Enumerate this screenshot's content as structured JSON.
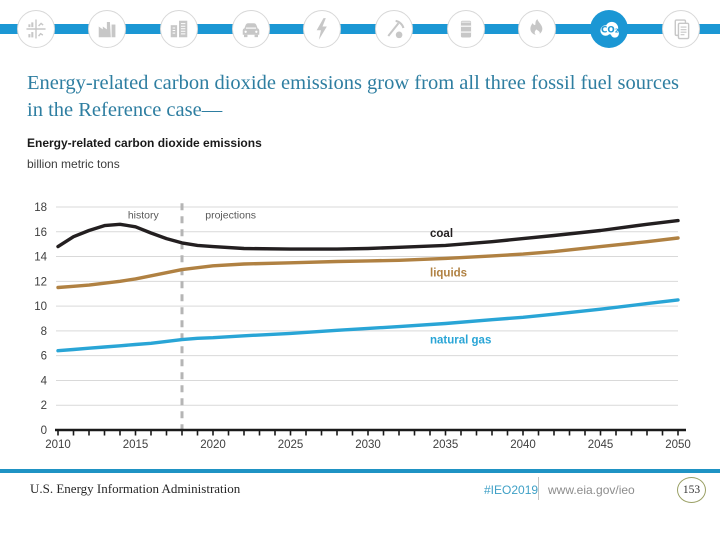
{
  "slide": {
    "title": "Energy-related carbon dioxide emissions grow from all three fossil fuel sources in the Reference case—",
    "title_color": "#2e7ea1",
    "accent_color": "#1b97d4"
  },
  "icon_bar": {
    "items": [
      {
        "id": "overview-charts"
      },
      {
        "id": "industry"
      },
      {
        "id": "buildings"
      },
      {
        "id": "transportation"
      },
      {
        "id": "electricity"
      },
      {
        "id": "coal-mining"
      },
      {
        "id": "petroleum"
      },
      {
        "id": "natural-gas"
      },
      {
        "id": "co2-emissions",
        "label": "CO₂",
        "active": true
      },
      {
        "id": "report"
      }
    ]
  },
  "chart": {
    "heading": "Energy-related carbon dioxide emissions",
    "unit_label": "billion metric tons"
  },
  "chart_data": {
    "type": "line",
    "title": "Energy-related carbon dioxide emissions",
    "ylabel": "billion metric tons",
    "xlim": [
      2010,
      2050
    ],
    "ylim": [
      0,
      18
    ],
    "yticks": [
      0,
      2,
      4,
      6,
      8,
      10,
      12,
      14,
      16,
      18
    ],
    "xticks": [
      2010,
      2015,
      2020,
      2025,
      2030,
      2035,
      2040,
      2045,
      2050
    ],
    "grid": true,
    "history_end": 2018,
    "x": [
      2010,
      2011,
      2012,
      2013,
      2014,
      2015,
      2016,
      2017,
      2018,
      2019,
      2020,
      2022,
      2025,
      2028,
      2030,
      2032,
      2035,
      2038,
      2040,
      2042,
      2045,
      2048,
      2050
    ],
    "series": [
      {
        "name": "coal",
        "color": "#231f20",
        "values": [
          14.8,
          15.6,
          16.1,
          16.5,
          16.6,
          16.4,
          15.9,
          15.45,
          15.1,
          14.9,
          14.8,
          14.65,
          14.6,
          14.6,
          14.65,
          14.75,
          14.9,
          15.2,
          15.45,
          15.7,
          16.1,
          16.6,
          16.9
        ]
      },
      {
        "name": "liquids",
        "color": "#b08142",
        "values": [
          11.5,
          11.6,
          11.7,
          11.85,
          12.0,
          12.2,
          12.45,
          12.7,
          12.95,
          13.1,
          13.25,
          13.4,
          13.5,
          13.6,
          13.65,
          13.7,
          13.85,
          14.05,
          14.2,
          14.4,
          14.8,
          15.2,
          15.5
        ]
      },
      {
        "name": "natural gas",
        "color": "#29a5d6",
        "values": [
          6.4,
          6.5,
          6.6,
          6.7,
          6.8,
          6.9,
          7.0,
          7.15,
          7.3,
          7.4,
          7.45,
          7.6,
          7.8,
          8.05,
          8.2,
          8.35,
          8.6,
          8.9,
          9.1,
          9.35,
          9.75,
          10.2,
          10.5
        ]
      }
    ],
    "annotations": [
      {
        "text": "history",
        "x": 2016.5,
        "y": 17.4,
        "anchor": "end",
        "color": "#595959",
        "size": 10.5
      },
      {
        "text": "projections",
        "x": 2019.5,
        "y": 17.4,
        "anchor": "start",
        "color": "#595959",
        "size": 10.5
      },
      {
        "text": "coal",
        "x": 2034,
        "y": 15.9,
        "anchor": "start",
        "color": "#231f20",
        "size": 11.5,
        "bold": true
      },
      {
        "text": "liquids",
        "x": 2034,
        "y": 12.7,
        "anchor": "start",
        "color": "#b08142",
        "size": 11.5,
        "bold": true
      },
      {
        "text": "natural gas",
        "x": 2034,
        "y": 7.3,
        "anchor": "start",
        "color": "#29a5d6",
        "size": 11.5,
        "bold": true
      }
    ]
  },
  "footer": {
    "org": "U.S. Energy Information Administration",
    "hashtag": "#IEO2019",
    "hashtag_color": "#3fa0c6",
    "url": "www.eia.gov/ieo",
    "page": "153",
    "rule_color": "#1f93c4"
  }
}
